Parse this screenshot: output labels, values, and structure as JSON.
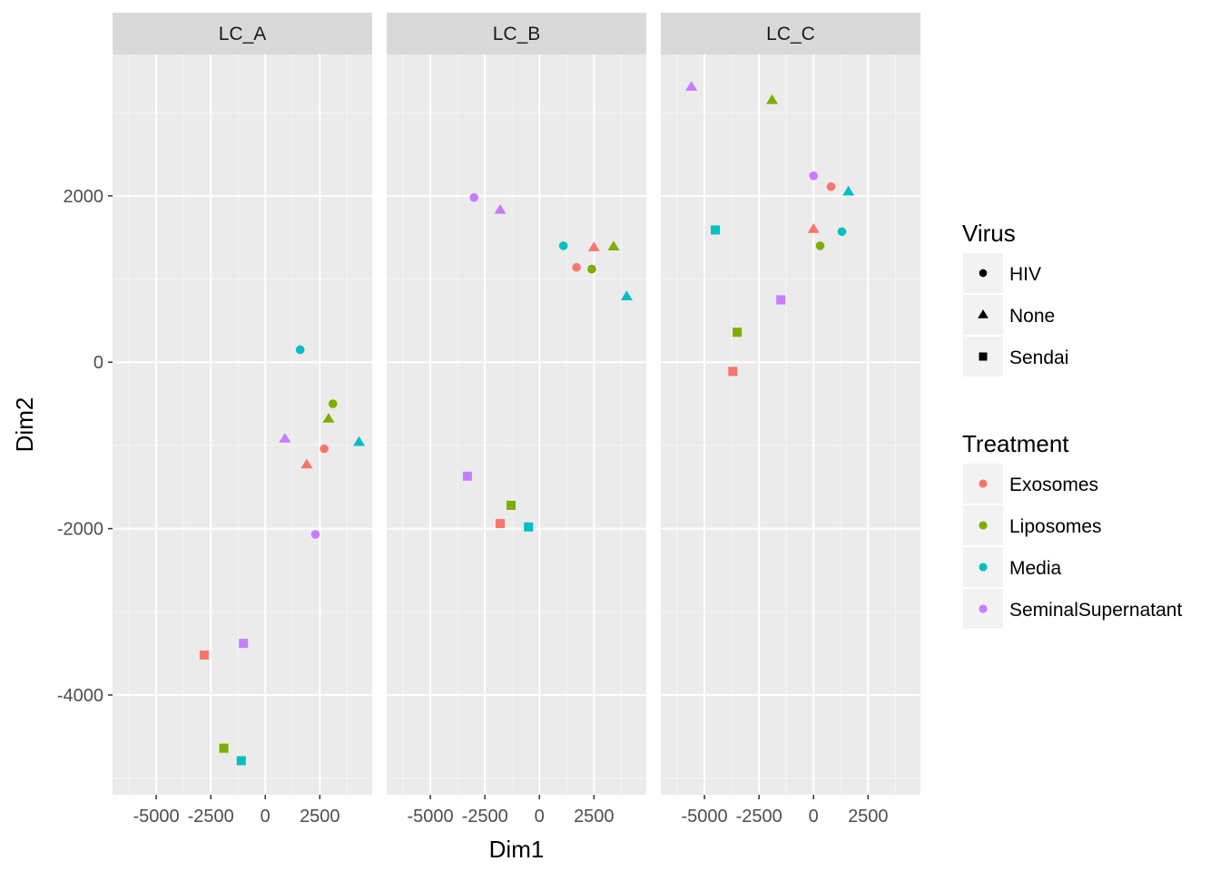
{
  "chart_data": {
    "type": "scatter",
    "facet_var": "cell",
    "facets": [
      "LC_A",
      "LC_B",
      "LC_C"
    ],
    "xlabel": "Dim1",
    "ylabel": "Dim2",
    "xlim": [
      -7000,
      4900
    ],
    "ylim": [
      -5200,
      3700
    ],
    "x_ticks": [
      -5000,
      -2500,
      0,
      2500
    ],
    "x_tick_labels": [
      "-5000",
      "-2500",
      "0",
      "2500"
    ],
    "y_ticks": [
      -4000,
      -2000,
      0,
      2000
    ],
    "y_tick_labels": [
      "-4000",
      "-2000",
      "0",
      "2000"
    ],
    "grid": true,
    "legend_position": "right",
    "shape_legend": {
      "title": "Virus",
      "items": [
        {
          "label": "HIV",
          "shape": "circle"
        },
        {
          "label": "None",
          "shape": "triangle"
        },
        {
          "label": "Sendai",
          "shape": "square"
        }
      ]
    },
    "color_legend": {
      "title": "Treatment",
      "items": [
        {
          "label": "Exosomes",
          "color": "#F8766D"
        },
        {
          "label": "Liposomes",
          "color": "#7CAE00"
        },
        {
          "label": "Media",
          "color": "#00BFC4"
        },
        {
          "label": "SeminalSupernatant",
          "color": "#C77CFF"
        }
      ]
    },
    "points": [
      {
        "facet": "LC_A",
        "x": 1600,
        "y": 150,
        "virus": "HIV",
        "treatment": "Media"
      },
      {
        "facet": "LC_A",
        "x": 3100,
        "y": -500,
        "virus": "HIV",
        "treatment": "Liposomes"
      },
      {
        "facet": "LC_A",
        "x": 2900,
        "y": -680,
        "virus": "None",
        "treatment": "Liposomes"
      },
      {
        "facet": "LC_A",
        "x": 900,
        "y": -920,
        "virus": "None",
        "treatment": "SeminalSupernatant"
      },
      {
        "facet": "LC_A",
        "x": 4300,
        "y": -960,
        "virus": "None",
        "treatment": "Media"
      },
      {
        "facet": "LC_A",
        "x": 2700,
        "y": -1040,
        "virus": "HIV",
        "treatment": "Exosomes"
      },
      {
        "facet": "LC_A",
        "x": 1900,
        "y": -1230,
        "virus": "None",
        "treatment": "Exosomes"
      },
      {
        "facet": "LC_A",
        "x": 2300,
        "y": -2070,
        "virus": "HIV",
        "treatment": "SeminalSupernatant"
      },
      {
        "facet": "LC_A",
        "x": -2800,
        "y": -3520,
        "virus": "Sendai",
        "treatment": "Exosomes"
      },
      {
        "facet": "LC_A",
        "x": -1000,
        "y": -3380,
        "virus": "Sendai",
        "treatment": "SeminalSupernatant"
      },
      {
        "facet": "LC_A",
        "x": -1900,
        "y": -4640,
        "virus": "Sendai",
        "treatment": "Liposomes"
      },
      {
        "facet": "LC_A",
        "x": -1100,
        "y": -4790,
        "virus": "Sendai",
        "treatment": "Media"
      },
      {
        "facet": "LC_B",
        "x": -3000,
        "y": 1980,
        "virus": "HIV",
        "treatment": "SeminalSupernatant"
      },
      {
        "facet": "LC_B",
        "x": -1800,
        "y": 1830,
        "virus": "None",
        "treatment": "SeminalSupernatant"
      },
      {
        "facet": "LC_B",
        "x": 1100,
        "y": 1400,
        "virus": "HIV",
        "treatment": "Media"
      },
      {
        "facet": "LC_B",
        "x": 2500,
        "y": 1380,
        "virus": "None",
        "treatment": "Exosomes"
      },
      {
        "facet": "LC_B",
        "x": 3400,
        "y": 1390,
        "virus": "None",
        "treatment": "Liposomes"
      },
      {
        "facet": "LC_B",
        "x": 1700,
        "y": 1140,
        "virus": "HIV",
        "treatment": "Exosomes"
      },
      {
        "facet": "LC_B",
        "x": 2400,
        "y": 1120,
        "virus": "HIV",
        "treatment": "Liposomes"
      },
      {
        "facet": "LC_B",
        "x": 4000,
        "y": 790,
        "virus": "None",
        "treatment": "Media"
      },
      {
        "facet": "LC_B",
        "x": -3300,
        "y": -1370,
        "virus": "Sendai",
        "treatment": "SeminalSupernatant"
      },
      {
        "facet": "LC_B",
        "x": -1300,
        "y": -1720,
        "virus": "Sendai",
        "treatment": "Liposomes"
      },
      {
        "facet": "LC_B",
        "x": -1800,
        "y": -1940,
        "virus": "Sendai",
        "treatment": "Exosomes"
      },
      {
        "facet": "LC_B",
        "x": -500,
        "y": -1980,
        "virus": "Sendai",
        "treatment": "Media"
      },
      {
        "facet": "LC_C",
        "x": -5600,
        "y": 3310,
        "virus": "None",
        "treatment": "SeminalSupernatant"
      },
      {
        "facet": "LC_C",
        "x": -1900,
        "y": 3150,
        "virus": "None",
        "treatment": "Liposomes"
      },
      {
        "facet": "LC_C",
        "x": 0,
        "y": 2240,
        "virus": "HIV",
        "treatment": "SeminalSupernatant"
      },
      {
        "facet": "LC_C",
        "x": 800,
        "y": 2110,
        "virus": "HIV",
        "treatment": "Exosomes"
      },
      {
        "facet": "LC_C",
        "x": 1600,
        "y": 2050,
        "virus": "None",
        "treatment": "Media"
      },
      {
        "facet": "LC_C",
        "x": -4500,
        "y": 1590,
        "virus": "Sendai",
        "treatment": "Media"
      },
      {
        "facet": "LC_C",
        "x": 0,
        "y": 1600,
        "virus": "None",
        "treatment": "Exosomes"
      },
      {
        "facet": "LC_C",
        "x": 1300,
        "y": 1570,
        "virus": "HIV",
        "treatment": "Media"
      },
      {
        "facet": "LC_C",
        "x": 300,
        "y": 1400,
        "virus": "HIV",
        "treatment": "Liposomes"
      },
      {
        "facet": "LC_C",
        "x": -1500,
        "y": 750,
        "virus": "Sendai",
        "treatment": "SeminalSupernatant"
      },
      {
        "facet": "LC_C",
        "x": -3500,
        "y": 360,
        "virus": "Sendai",
        "treatment": "Liposomes"
      },
      {
        "facet": "LC_C",
        "x": -3700,
        "y": -110,
        "virus": "Sendai",
        "treatment": "Exosomes"
      }
    ]
  }
}
